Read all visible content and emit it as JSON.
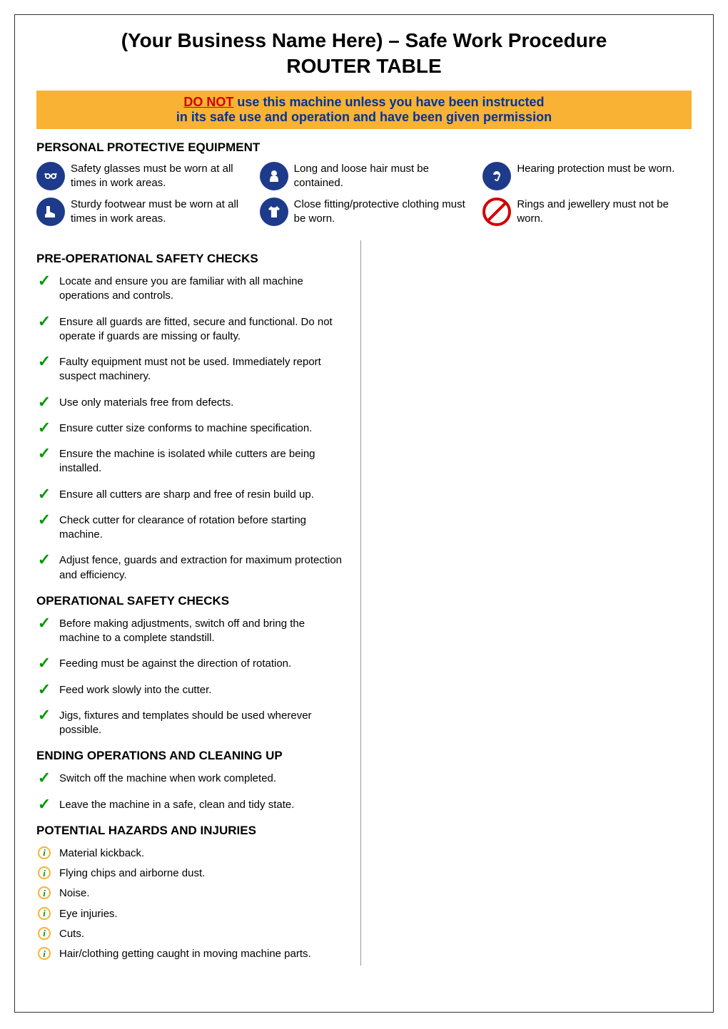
{
  "title": {
    "line1": "(Your Business Name Here) – Safe Work Procedure",
    "line2": "ROUTER TABLE"
  },
  "warning": {
    "do_not": "DO NOT",
    "line1_rest": " use this machine unless you have been instructed",
    "line2": "in its safe use and operation and have been given permission",
    "bg_color": "#f9b233",
    "text_color": "#003399",
    "do_not_color": "#d00000"
  },
  "ppe": {
    "heading": "PERSONAL PROTECTIVE EQUIPMENT",
    "items": [
      {
        "text": "Safety glasses must be worn at all times in work areas.",
        "icon": "glasses",
        "icon_type": "blue"
      },
      {
        "text": "Long and loose hair must be contained.",
        "icon": "hair",
        "icon_type": "blue"
      },
      {
        "text": "Hearing protection must be worn.",
        "icon": "ear",
        "icon_type": "blue"
      },
      {
        "text": "Sturdy footwear must be worn at all times in work areas.",
        "icon": "boot",
        "icon_type": "blue"
      },
      {
        "text": "Close fitting/protective clothing must be worn.",
        "icon": "clothing",
        "icon_type": "blue"
      },
      {
        "text": "Rings and jewellery must not be worn.",
        "icon": "prohibit",
        "icon_type": "red"
      }
    ]
  },
  "sections": {
    "pre_operational": {
      "heading": "PRE-OPERATIONAL SAFETY CHECKS",
      "items": [
        "Locate and ensure you are familiar with all machine operations and controls.",
        "Ensure all guards are fitted, secure and functional. Do not operate if guards are missing or faulty.",
        "Faulty equipment must not be used. Immediately report suspect machinery.",
        "Use only materials free from defects.",
        "Ensure cutter size conforms to machine specification.",
        "Ensure the machine is isolated while cutters are being installed.",
        "Ensure all cutters are sharp and free of resin build up.",
        "Check cutter for clearance of rotation before starting machine.",
        "Adjust fence, guards and extraction for maximum protection and efficiency."
      ]
    },
    "operational": {
      "heading": "OPERATIONAL SAFETY CHECKS",
      "items": [
        "Before making adjustments, switch off and bring the machine to a complete standstill.",
        "Feeding must be against the direction of rotation.",
        "Feed work slowly into the cutter.",
        "Jigs, fixtures and templates should be used wherever possible."
      ]
    },
    "ending": {
      "heading": "ENDING OPERATIONS AND CLEANING UP",
      "items": [
        "Switch off the machine when work completed.",
        "Leave the machine in a safe, clean and tidy state."
      ]
    },
    "hazards": {
      "heading": "POTENTIAL HAZARDS AND INJURIES",
      "items": [
        "Material kickback.",
        "Flying chips and airborne dust.",
        "Noise.",
        "Eye injuries.",
        "Cuts.",
        "Hair/clothing getting caught in moving machine parts."
      ]
    }
  },
  "colors": {
    "check_green": "#009900",
    "info_border": "#f9b233",
    "icon_blue": "#1e3a8a",
    "icon_red": "#d00000"
  }
}
